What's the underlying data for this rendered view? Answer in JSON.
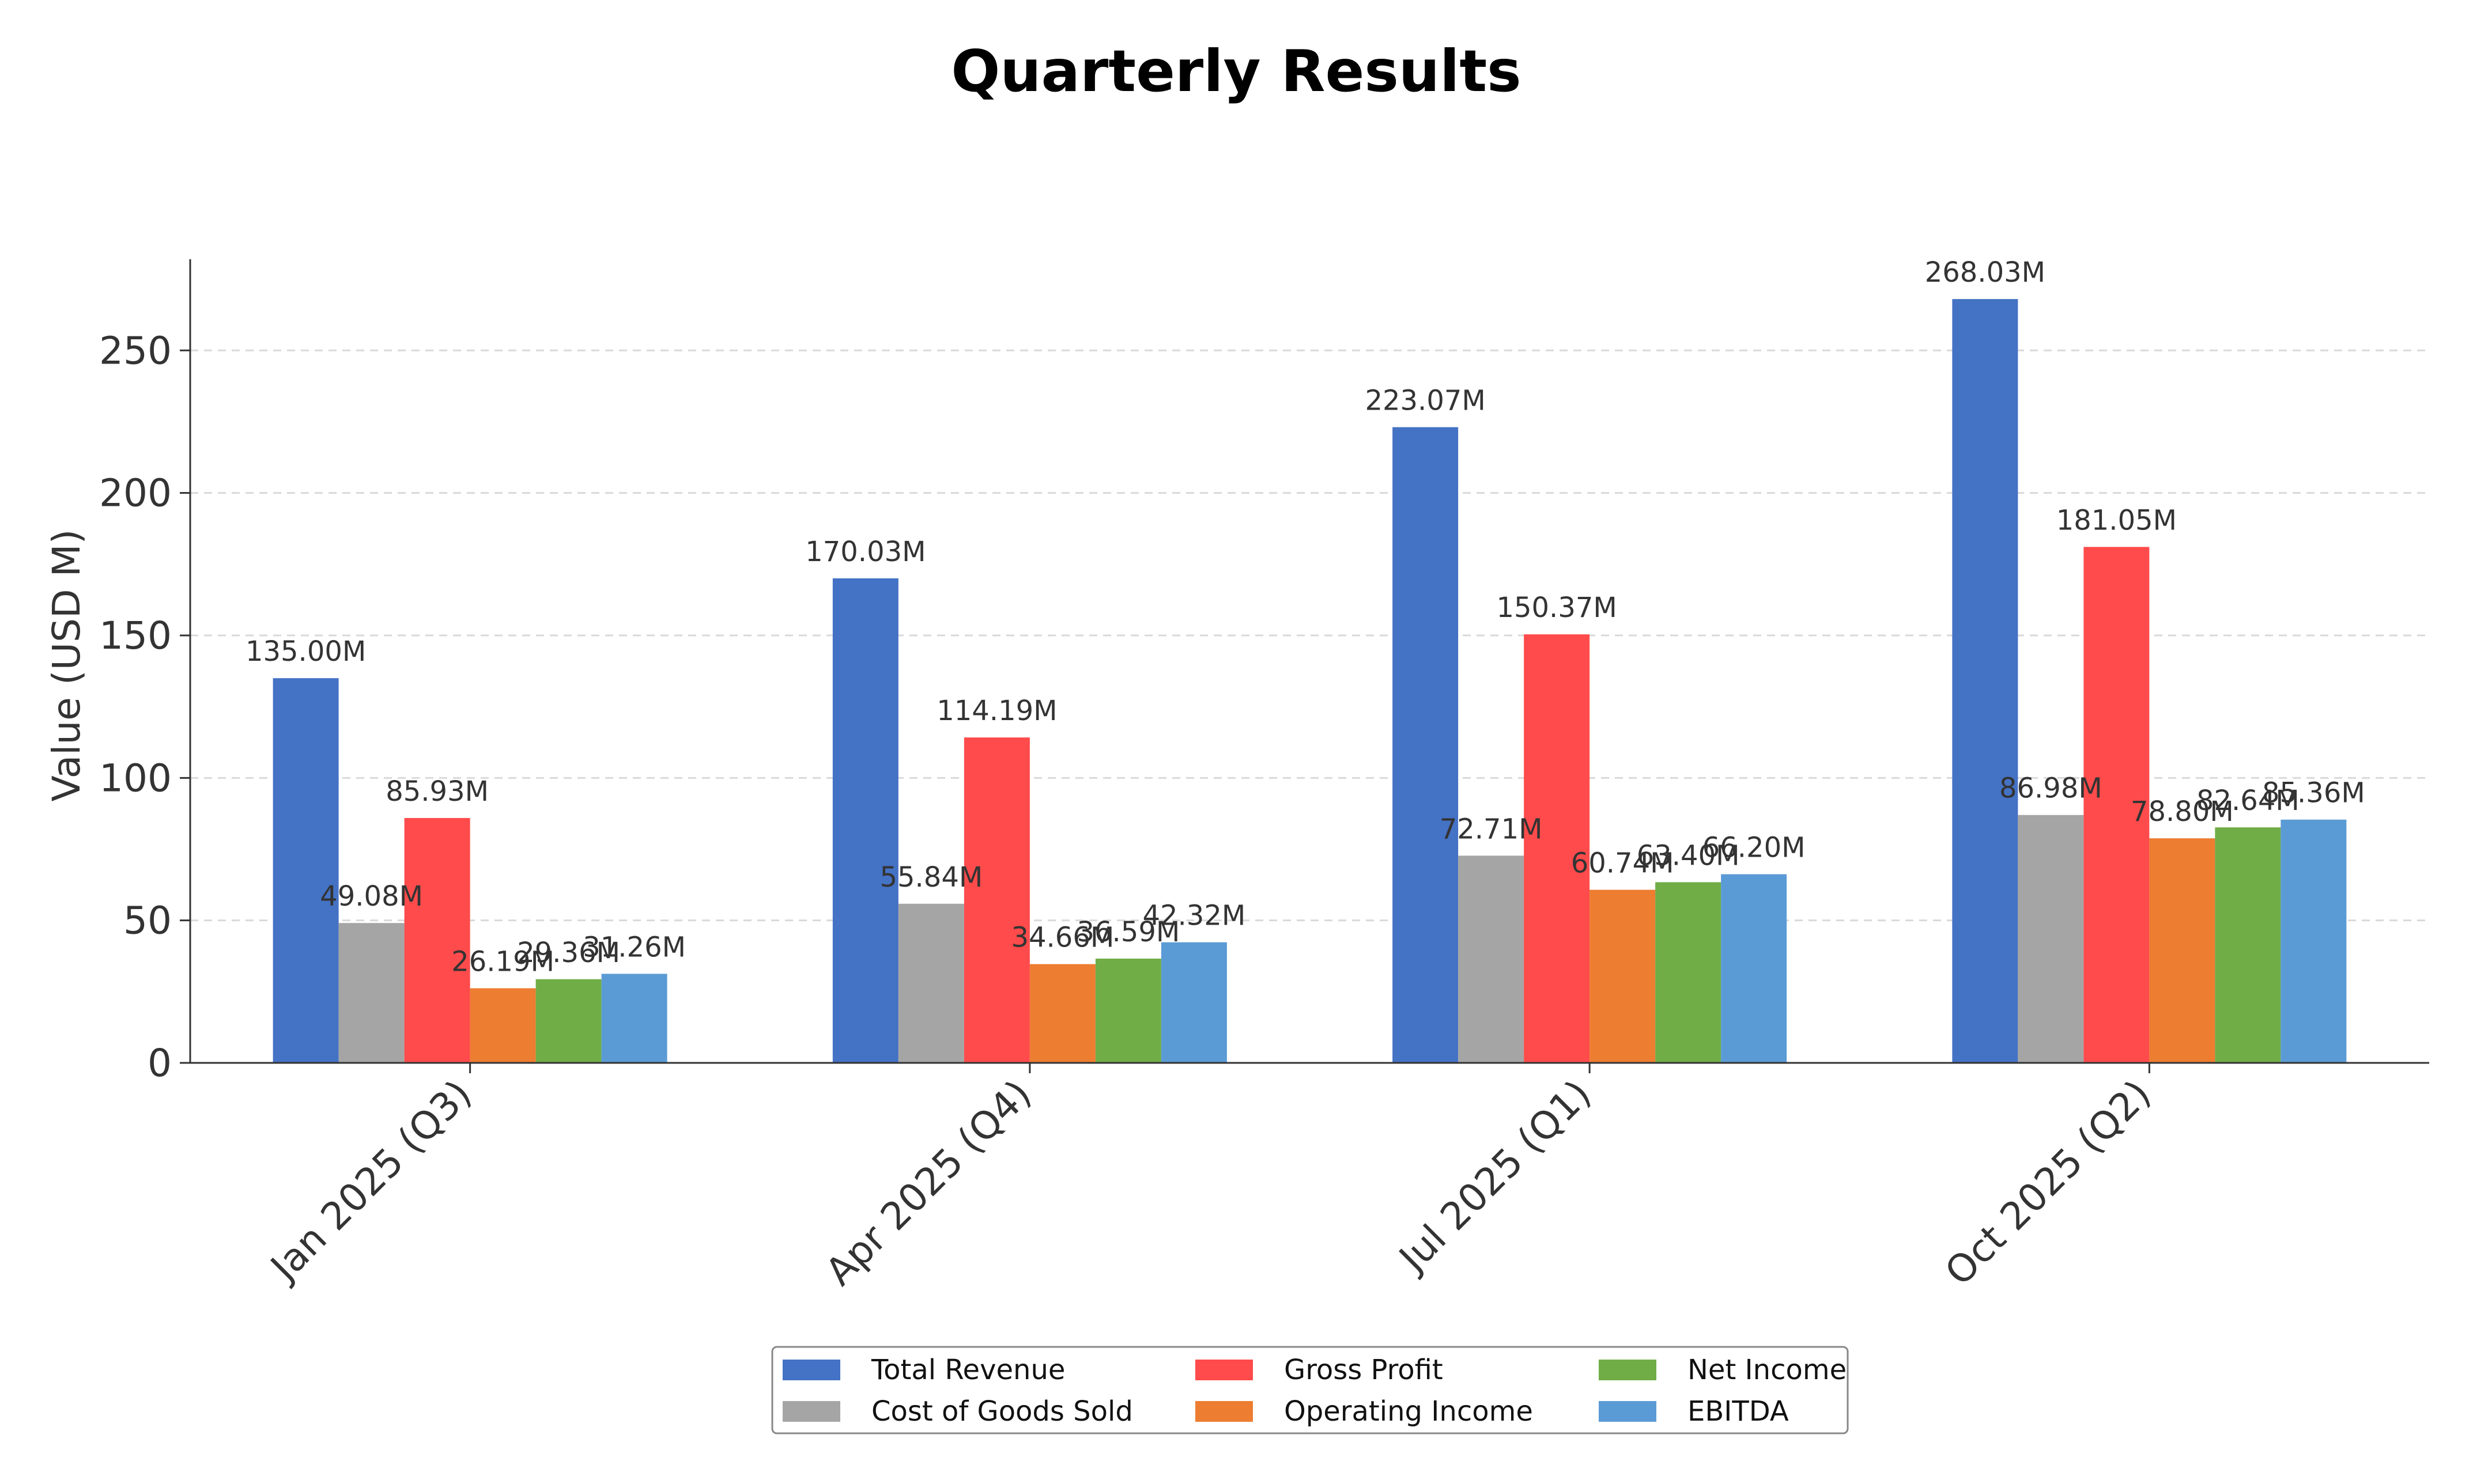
{
  "chart_data": {
    "type": "bar",
    "title": "Quarterly Results",
    "xlabel": "",
    "ylabel": "Value (USD M)",
    "categories": [
      "Jan 2025 (Q3)",
      "Apr 2025 (Q4)",
      "Jul 2025 (Q1)",
      "Oct 2025 (Q2)"
    ],
    "ylim": [
      0,
      282
    ],
    "yticks": [
      0,
      50,
      100,
      150,
      200,
      250
    ],
    "grid": true,
    "legend_position": "bottom-center",
    "series": [
      {
        "name": "Total Revenue",
        "color": "#4472c4",
        "values": [
          135.0,
          170.03,
          223.07,
          268.03
        ],
        "labels": [
          "135.00M",
          "170.03M",
          "223.07M",
          "268.03M"
        ]
      },
      {
        "name": "Cost of Goods Sold",
        "color": "#a5a5a5",
        "values": [
          49.08,
          55.84,
          72.71,
          86.98
        ],
        "labels": [
          "49.08M",
          "55.84M",
          "72.71M",
          "86.98M"
        ]
      },
      {
        "name": "Gross Profit",
        "color": "#ff4b4b",
        "values": [
          85.93,
          114.19,
          150.37,
          181.05
        ],
        "labels": [
          "85.93M",
          "114.19M",
          "150.37M",
          "181.05M"
        ]
      },
      {
        "name": "Operating Income",
        "color": "#ed7d31",
        "values": [
          26.19,
          34.66,
          60.74,
          78.8
        ],
        "labels": [
          "26.19M",
          "34.66M",
          "60.74M",
          "78.80M"
        ]
      },
      {
        "name": "Net Income",
        "color": "#70ad47",
        "values": [
          29.36,
          36.59,
          63.4,
          82.64
        ],
        "labels": [
          "29.36M",
          "36.59M",
          "63.40M",
          "82.64M"
        ]
      },
      {
        "name": "EBITDA",
        "color": "#5b9bd5",
        "values": [
          31.26,
          42.32,
          66.2,
          85.36
        ],
        "labels": [
          "31.26M",
          "42.32M",
          "66.20M",
          "85.36M"
        ]
      }
    ]
  }
}
